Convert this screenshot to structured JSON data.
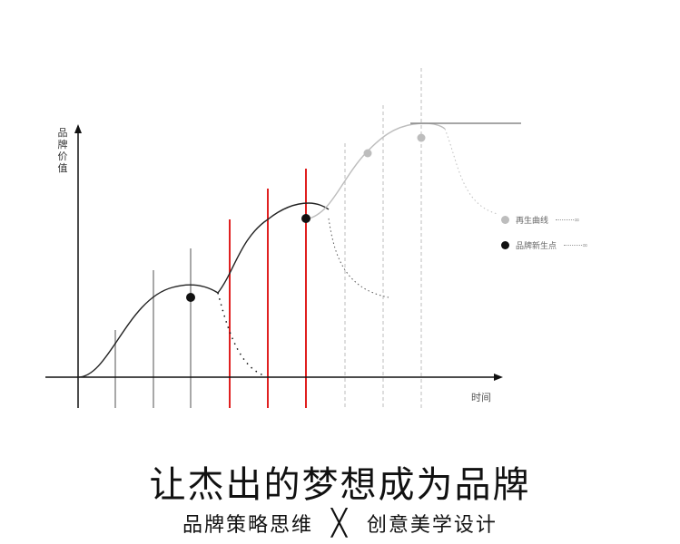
{
  "axes": {
    "y_label_chars": [
      "品",
      "牌",
      "价",
      "值"
    ],
    "x_label": "时间"
  },
  "legend": [
    {
      "label": "再生曲线",
      "color": "#bdbdbd",
      "end": "∞"
    },
    {
      "label": "品牌新生点",
      "color": "#111111",
      "end": "∞"
    }
  ],
  "colors": {
    "axis": "#111111",
    "curve": "#222222",
    "regen_curve": "#bdbdbd",
    "gray_line": "#a8a8a8",
    "red_line": "#e02020",
    "dashed_line": "#bdbdbd"
  },
  "headline": "让杰出的梦想成为品牌",
  "subline": {
    "left": "品牌策略思维",
    "separator": "╳",
    "right": "创意美学设计"
  }
}
